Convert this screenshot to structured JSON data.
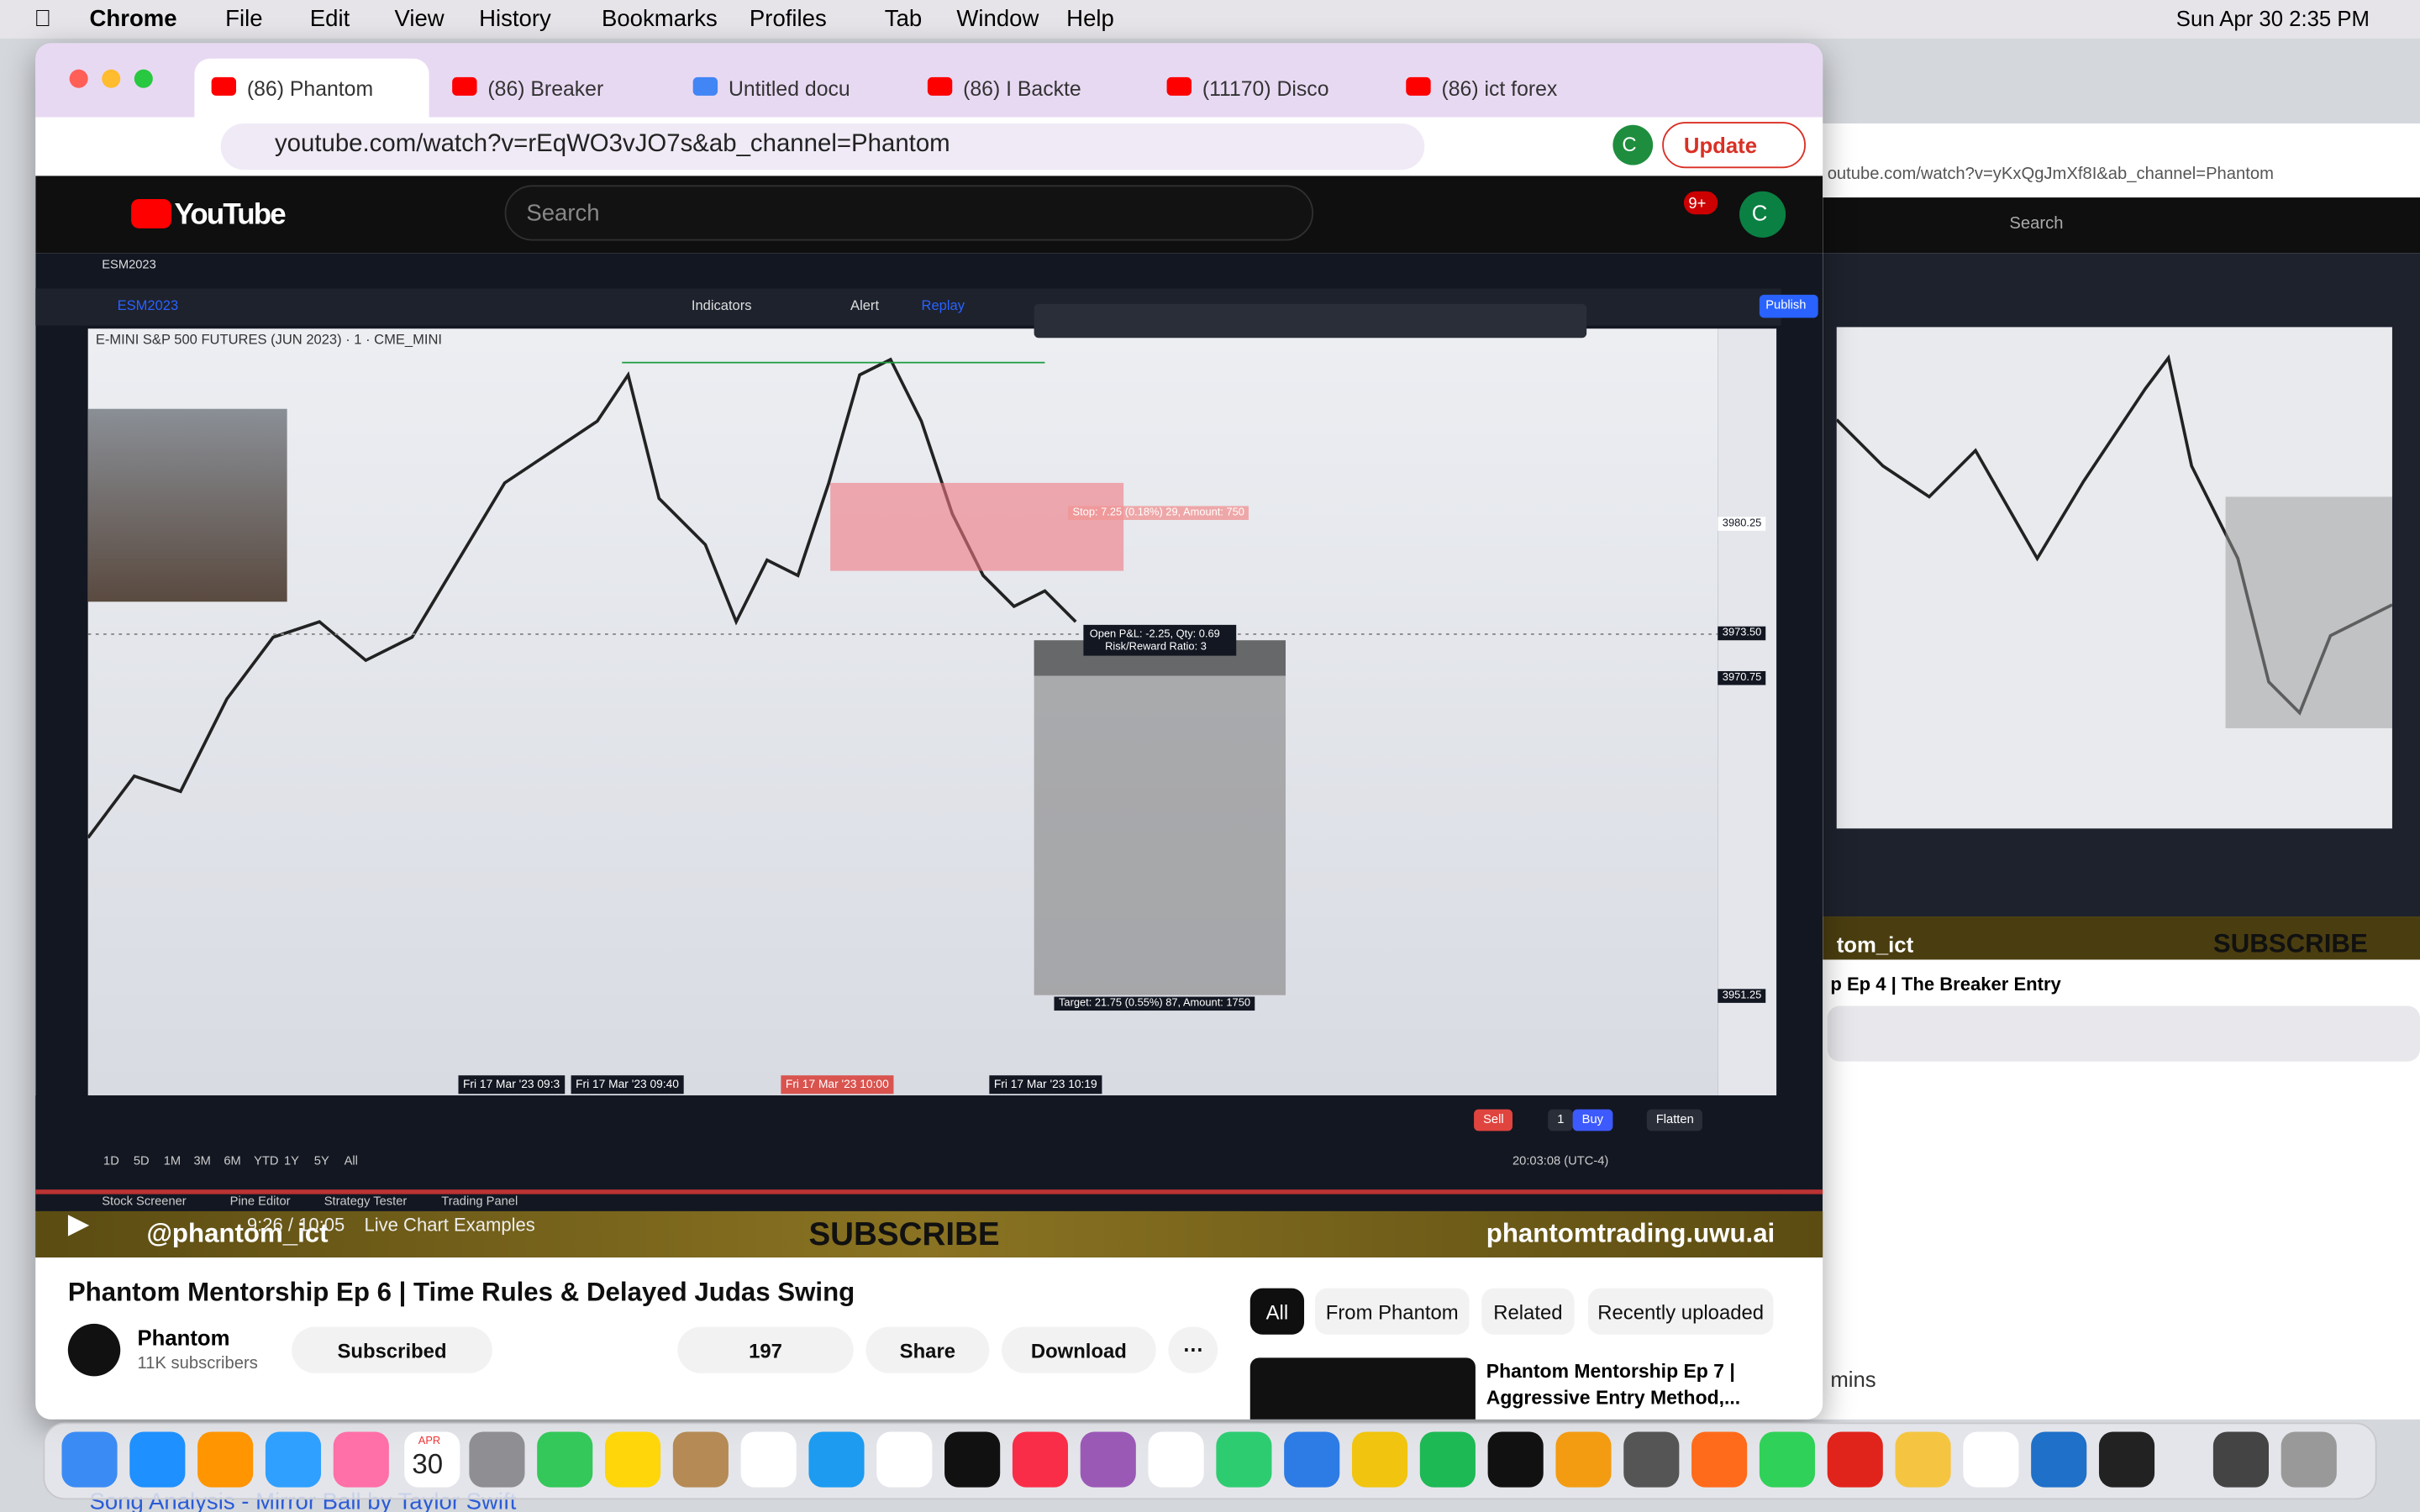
{
  "menu_bar": {
    "app": "Chrome",
    "items": [
      "File",
      "Edit",
      "View",
      "History",
      "Bookmarks",
      "Profiles",
      "Tab",
      "Window",
      "Help"
    ],
    "clock": "Sun Apr 30  2:35 PM"
  },
  "browser": {
    "tabs": [
      "(86) Phantom",
      "(86) Breaker",
      "Untitled docu",
      "(86) I Backte",
      "(11170) Disco",
      "(86) ict forex"
    ],
    "url": "youtube.com/watch?v=rEqWO3vJO7s&ab_channel=Phantom",
    "update_button": "Update",
    "profile": "C"
  },
  "youtube": {
    "logo": "YouTube",
    "search_placeholder": "Search",
    "notification_count": "9+",
    "avatar": "C"
  },
  "video": {
    "chart": {
      "symbol": "ESM2023",
      "title": "E-MINI S&P 500 FUTURES (JUN 2023) · 1 · CME_MINI",
      "toolbar": [
        "Indicators",
        "Alert",
        "Replay",
        "Publish"
      ],
      "price_labels": [
        "3980.25",
        "3973.50",
        "3970.75",
        "3951.25"
      ],
      "stop_label": "Stop: 7.25 (0.18%) 29, Amount: 750",
      "pnl_label": "Open P&L: -2.25, Qty: 0.69",
      "rr_label": "Risk/Reward Ratio: 3",
      "target_label": "Target: 21.75 (0.55%) 87, Amount: 1750",
      "time_labels": [
        "Fri 17 Mar '23  09:3",
        "Fri 17 Mar '23  09:40",
        "Fri 17 Mar '23  10:00",
        "Fri 17 Mar '23  10:19"
      ],
      "trade_buttons": [
        "Sell",
        "1",
        "Buy",
        "Flatten"
      ],
      "clock": "20:03:08 (UTC-4)",
      "ranges": [
        "1D",
        "5D",
        "1M",
        "3M",
        "6M",
        "YTD",
        "1Y",
        "5Y",
        "All"
      ],
      "bottom_tabs": [
        "Stock Screener",
        "Pine Editor",
        "Strategy Tester",
        "Trading Panel"
      ]
    },
    "player": {
      "time": "9:26 / 10:05",
      "chapter": "Live Chart Examples",
      "banner": "SUBSCRIBE",
      "handle": "@phantom_ict",
      "site": "phantomtrading.uwu.ai"
    }
  },
  "details": {
    "title": "Phantom Mentorship Ep 6 | Time Rules & Delayed Judas Swing",
    "channel": "Phantom",
    "subscribers": "11K subscribers",
    "subscribed": "Subscribed",
    "likes": "197",
    "share": "Share",
    "download": "Download"
  },
  "sidebar": {
    "chips": [
      "All",
      "From Phantom",
      "Related",
      "Recently uploaded"
    ],
    "next_title": "Phantom Mentorship Ep 7 | Aggressive Entry Method,..."
  },
  "background_window": {
    "url": "outube.com/watch?v=yKxQgJmXf8I&ab_channel=Phantom",
    "search": "Search",
    "channel": "tom_ict",
    "banner": "SUBSCRIBE",
    "title": "p Ep 4 | The Breaker Entry",
    "trailing": "mins"
  },
  "desktop": {
    "background_link": "Song Analysis - Mirror Ball by Taylor Swift",
    "dock_calendar_month": "APR",
    "dock_calendar_day": "30"
  }
}
